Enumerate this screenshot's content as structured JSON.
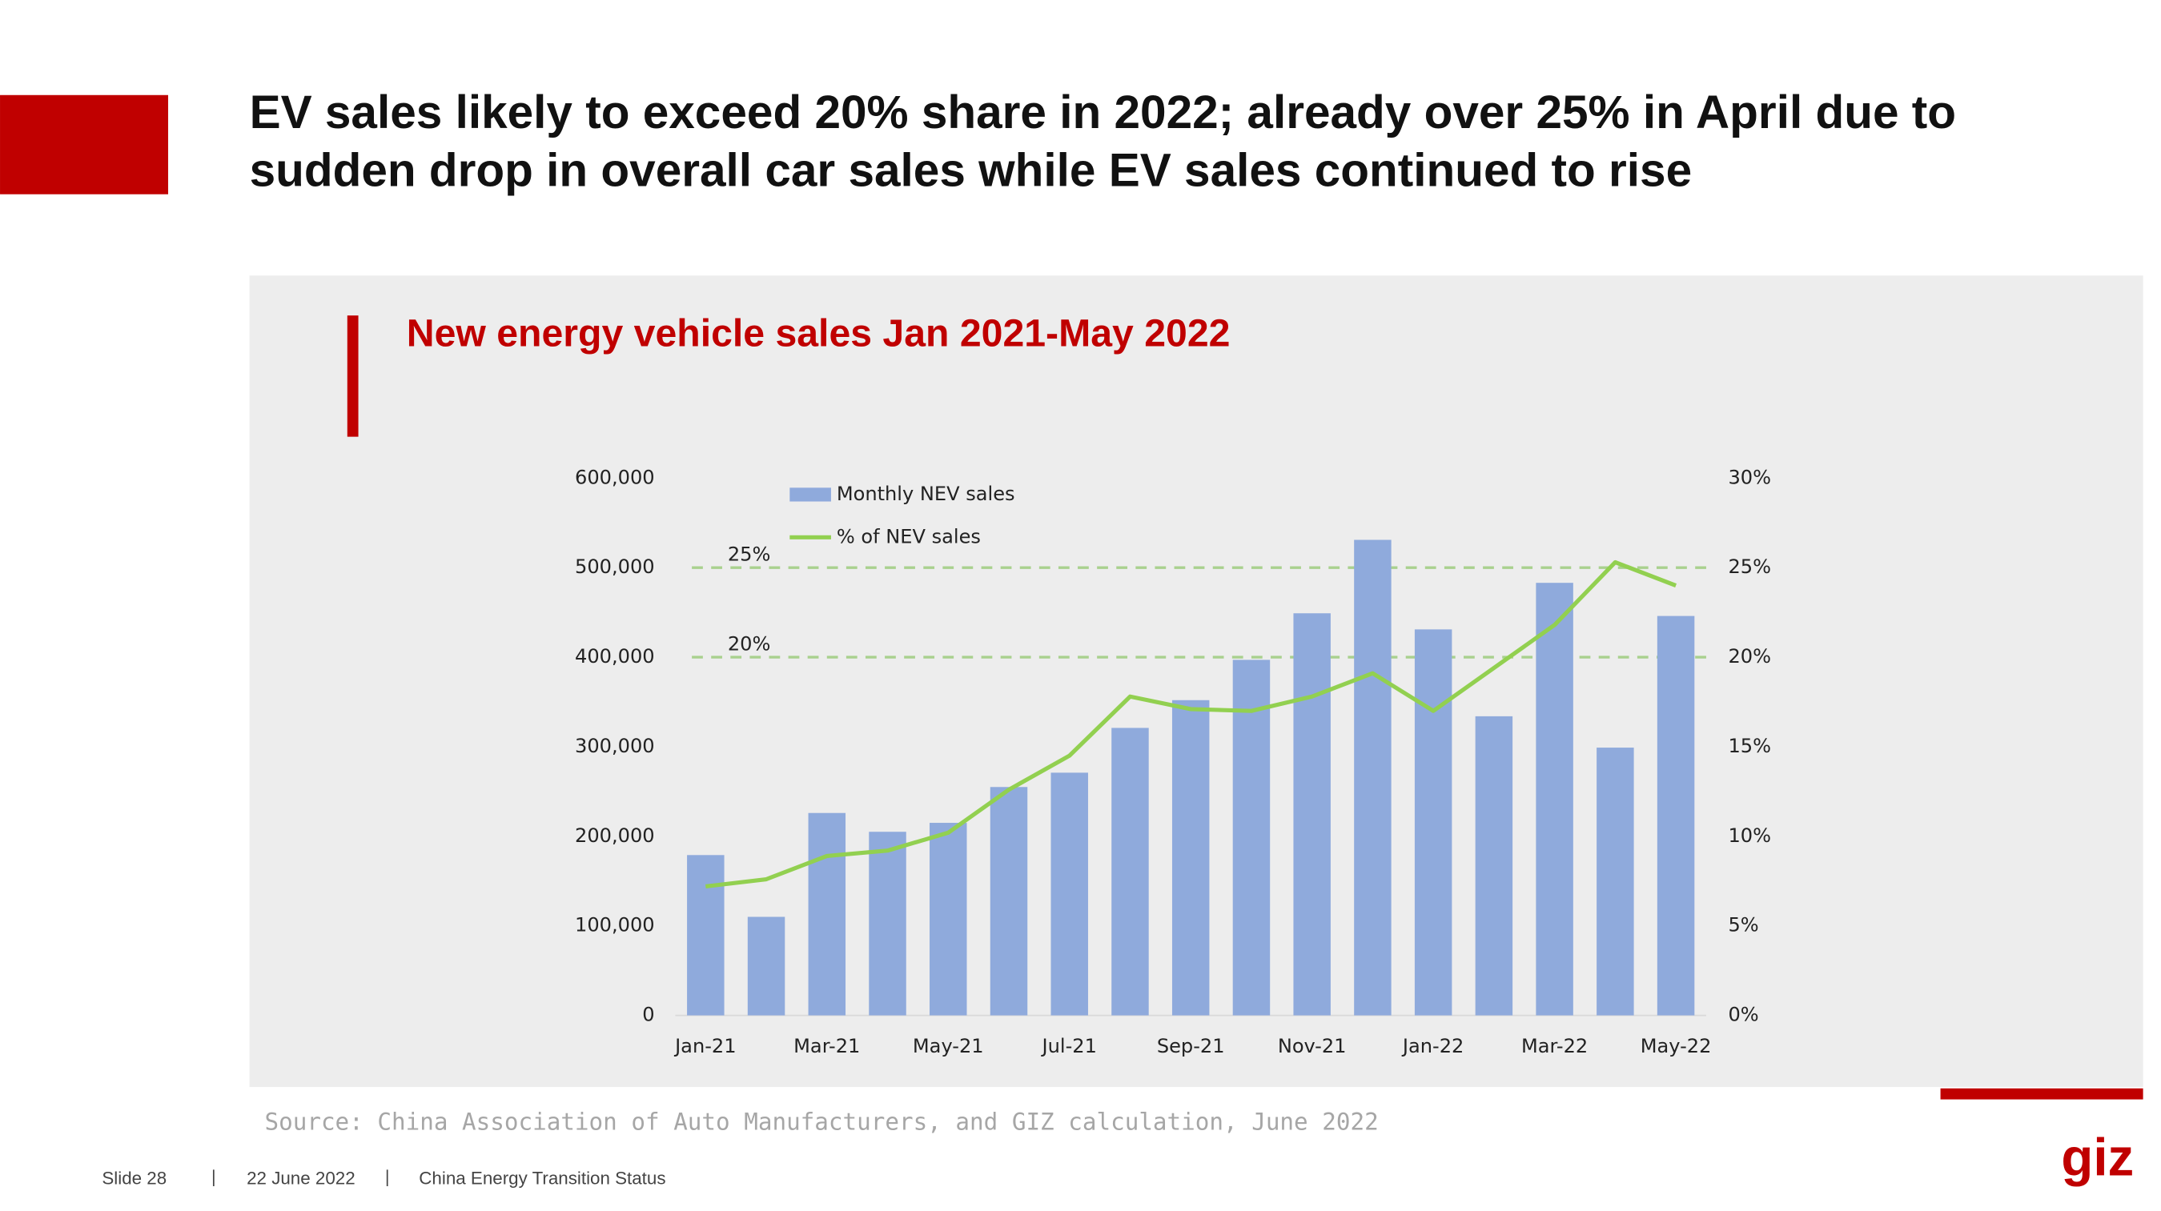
{
  "header": {
    "title_lines": [
      "EV sales likely to exceed 20% share in 2022; already over 25% in April due to",
      "sudden drop in overall car sales while EV sales continued to rise"
    ]
  },
  "chart_data": {
    "type": "bar-line",
    "title": "New energy vehicle sales Jan 2021-May 2022",
    "categories": [
      "Jan-21",
      null,
      "Mar-21",
      null,
      "May-21",
      null,
      "Jul-21",
      null,
      "Sep-21",
      null,
      "Nov-21",
      null,
      "Jan-22",
      null,
      "Mar-22",
      null,
      "May-22"
    ],
    "series": [
      {
        "name": "Monthly NEV sales",
        "type": "bar",
        "color": "#8faadc",
        "values": [
          179000,
          110000,
          226000,
          205000,
          215000,
          255000,
          271000,
          321000,
          352000,
          397000,
          449000,
          531000,
          431000,
          334000,
          483000,
          299000,
          446000
        ]
      },
      {
        "name": "% of NEV sales",
        "type": "line",
        "axis": "y2",
        "color": "#92d050",
        "values": [
          7.2,
          7.6,
          8.9,
          9.2,
          10.2,
          12.6,
          14.5,
          17.8,
          17.1,
          17.0,
          17.8,
          19.1,
          17.0,
          19.4,
          21.8,
          25.3,
          24.0
        ]
      }
    ],
    "ylim": [
      0,
      600000
    ],
    "yticks": [
      0,
      {
        "value": 100000,
        "label": "100,000"
      },
      {
        "value": 200000,
        "label": "200,000"
      },
      {
        "value": 300000,
        "label": "300,000"
      },
      {
        "value": 400000,
        "label": "400,000"
      },
      {
        "value": 500000,
        "label": "500,000"
      },
      {
        "value": 600000,
        "label": "600,000"
      }
    ],
    "y2lim": [
      0,
      30
    ],
    "y2ticks": [
      {
        "value": 0,
        "label": "0%"
      },
      {
        "value": 5,
        "label": "5%"
      },
      {
        "value": 10,
        "label": "10%"
      },
      {
        "value": 15,
        "label": "15%"
      },
      {
        "value": 20,
        "label": "20%"
      },
      {
        "value": 25,
        "label": "25%"
      },
      {
        "value": 30,
        "label": "30%"
      }
    ],
    "reference_lines": [
      {
        "value": 25,
        "label": "25%",
        "axis": "y2",
        "color": "#a9d18e"
      },
      {
        "value": 20,
        "label": "20%",
        "axis": "y2",
        "color": "#a9d18e"
      }
    ],
    "source": "Source: China Association of Auto Manufacturers, and GIZ calculation, June 2022"
  },
  "footer": {
    "slide": "Slide 28",
    "date": "22 June 2022",
    "topic": "China Energy Transition Status",
    "logo": "giz"
  }
}
